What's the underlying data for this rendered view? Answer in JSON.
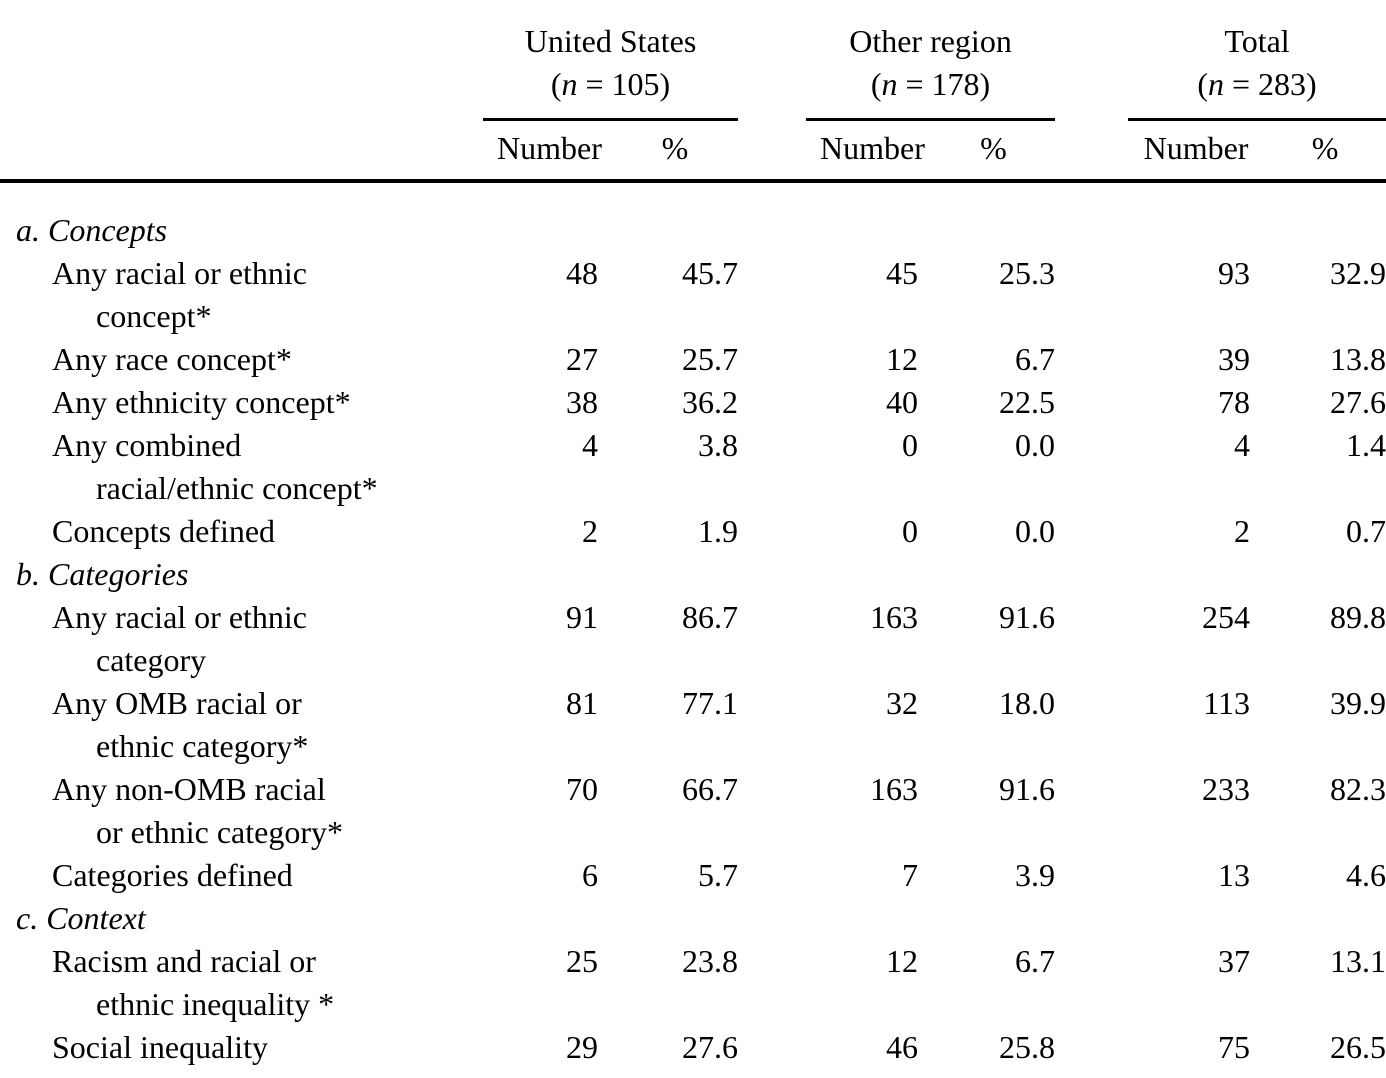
{
  "page": {
    "background": "#ffffff",
    "text_color": "#000000",
    "rule_color": "#000000"
  },
  "table": {
    "groups": [
      {
        "title": "United States",
        "n_pre": "(",
        "n_var": "n",
        "n_post": " = 105)"
      },
      {
        "title": "Other region",
        "n_pre": "(",
        "n_var": "n",
        "n_post": " = 178)"
      },
      {
        "title": "Total",
        "n_pre": "(",
        "n_var": "n",
        "n_post": " = 283)"
      }
    ],
    "subheaders": [
      "Number",
      "%",
      "Number",
      "%",
      "Number",
      "%"
    ],
    "sections": [
      {
        "label": "a. Concepts",
        "rows": [
          {
            "label": "Any racial or ethnic\nconcept*",
            "values": [
              "48",
              "45.7",
              "45",
              "25.3",
              "93",
              "32.9"
            ]
          },
          {
            "label": "Any race concept*",
            "values": [
              "27",
              "25.7",
              "12",
              "6.7",
              "39",
              "13.8"
            ]
          },
          {
            "label": "Any ethnicity concept*",
            "values": [
              "38",
              "36.2",
              "40",
              "22.5",
              "78",
              "27.6"
            ]
          },
          {
            "label": "Any combined\nracial/ethnic concept*",
            "values": [
              "4",
              "3.8",
              "0",
              "0.0",
              "4",
              "1.4"
            ]
          },
          {
            "label": "Concepts defined",
            "values": [
              "2",
              "1.9",
              "0",
              "0.0",
              "2",
              "0.7"
            ]
          }
        ]
      },
      {
        "label": "b. Categories",
        "rows": [
          {
            "label": "Any racial or ethnic\ncategory",
            "values": [
              "91",
              "86.7",
              "163",
              "91.6",
              "254",
              "89.8"
            ]
          },
          {
            "label": "Any OMB racial or\nethnic category*",
            "values": [
              "81",
              "77.1",
              "32",
              "18.0",
              "113",
              "39.9"
            ]
          },
          {
            "label": "Any non-OMB racial\nor ethnic category*",
            "values": [
              "70",
              "66.7",
              "163",
              "91.6",
              "233",
              "82.3"
            ]
          },
          {
            "label": "Categories defined",
            "values": [
              "6",
              "5.7",
              "7",
              "3.9",
              "13",
              "4.6"
            ]
          }
        ]
      },
      {
        "label": "c. Context",
        "rows": [
          {
            "label": "Racism and racial or\nethnic inequality *",
            "values": [
              "25",
              "23.8",
              "12",
              "6.7",
              "37",
              "13.1"
            ]
          },
          {
            "label": "Social inequality",
            "values": [
              "29",
              "27.6",
              "46",
              "25.8",
              "75",
              "26.5"
            ]
          }
        ]
      }
    ]
  }
}
